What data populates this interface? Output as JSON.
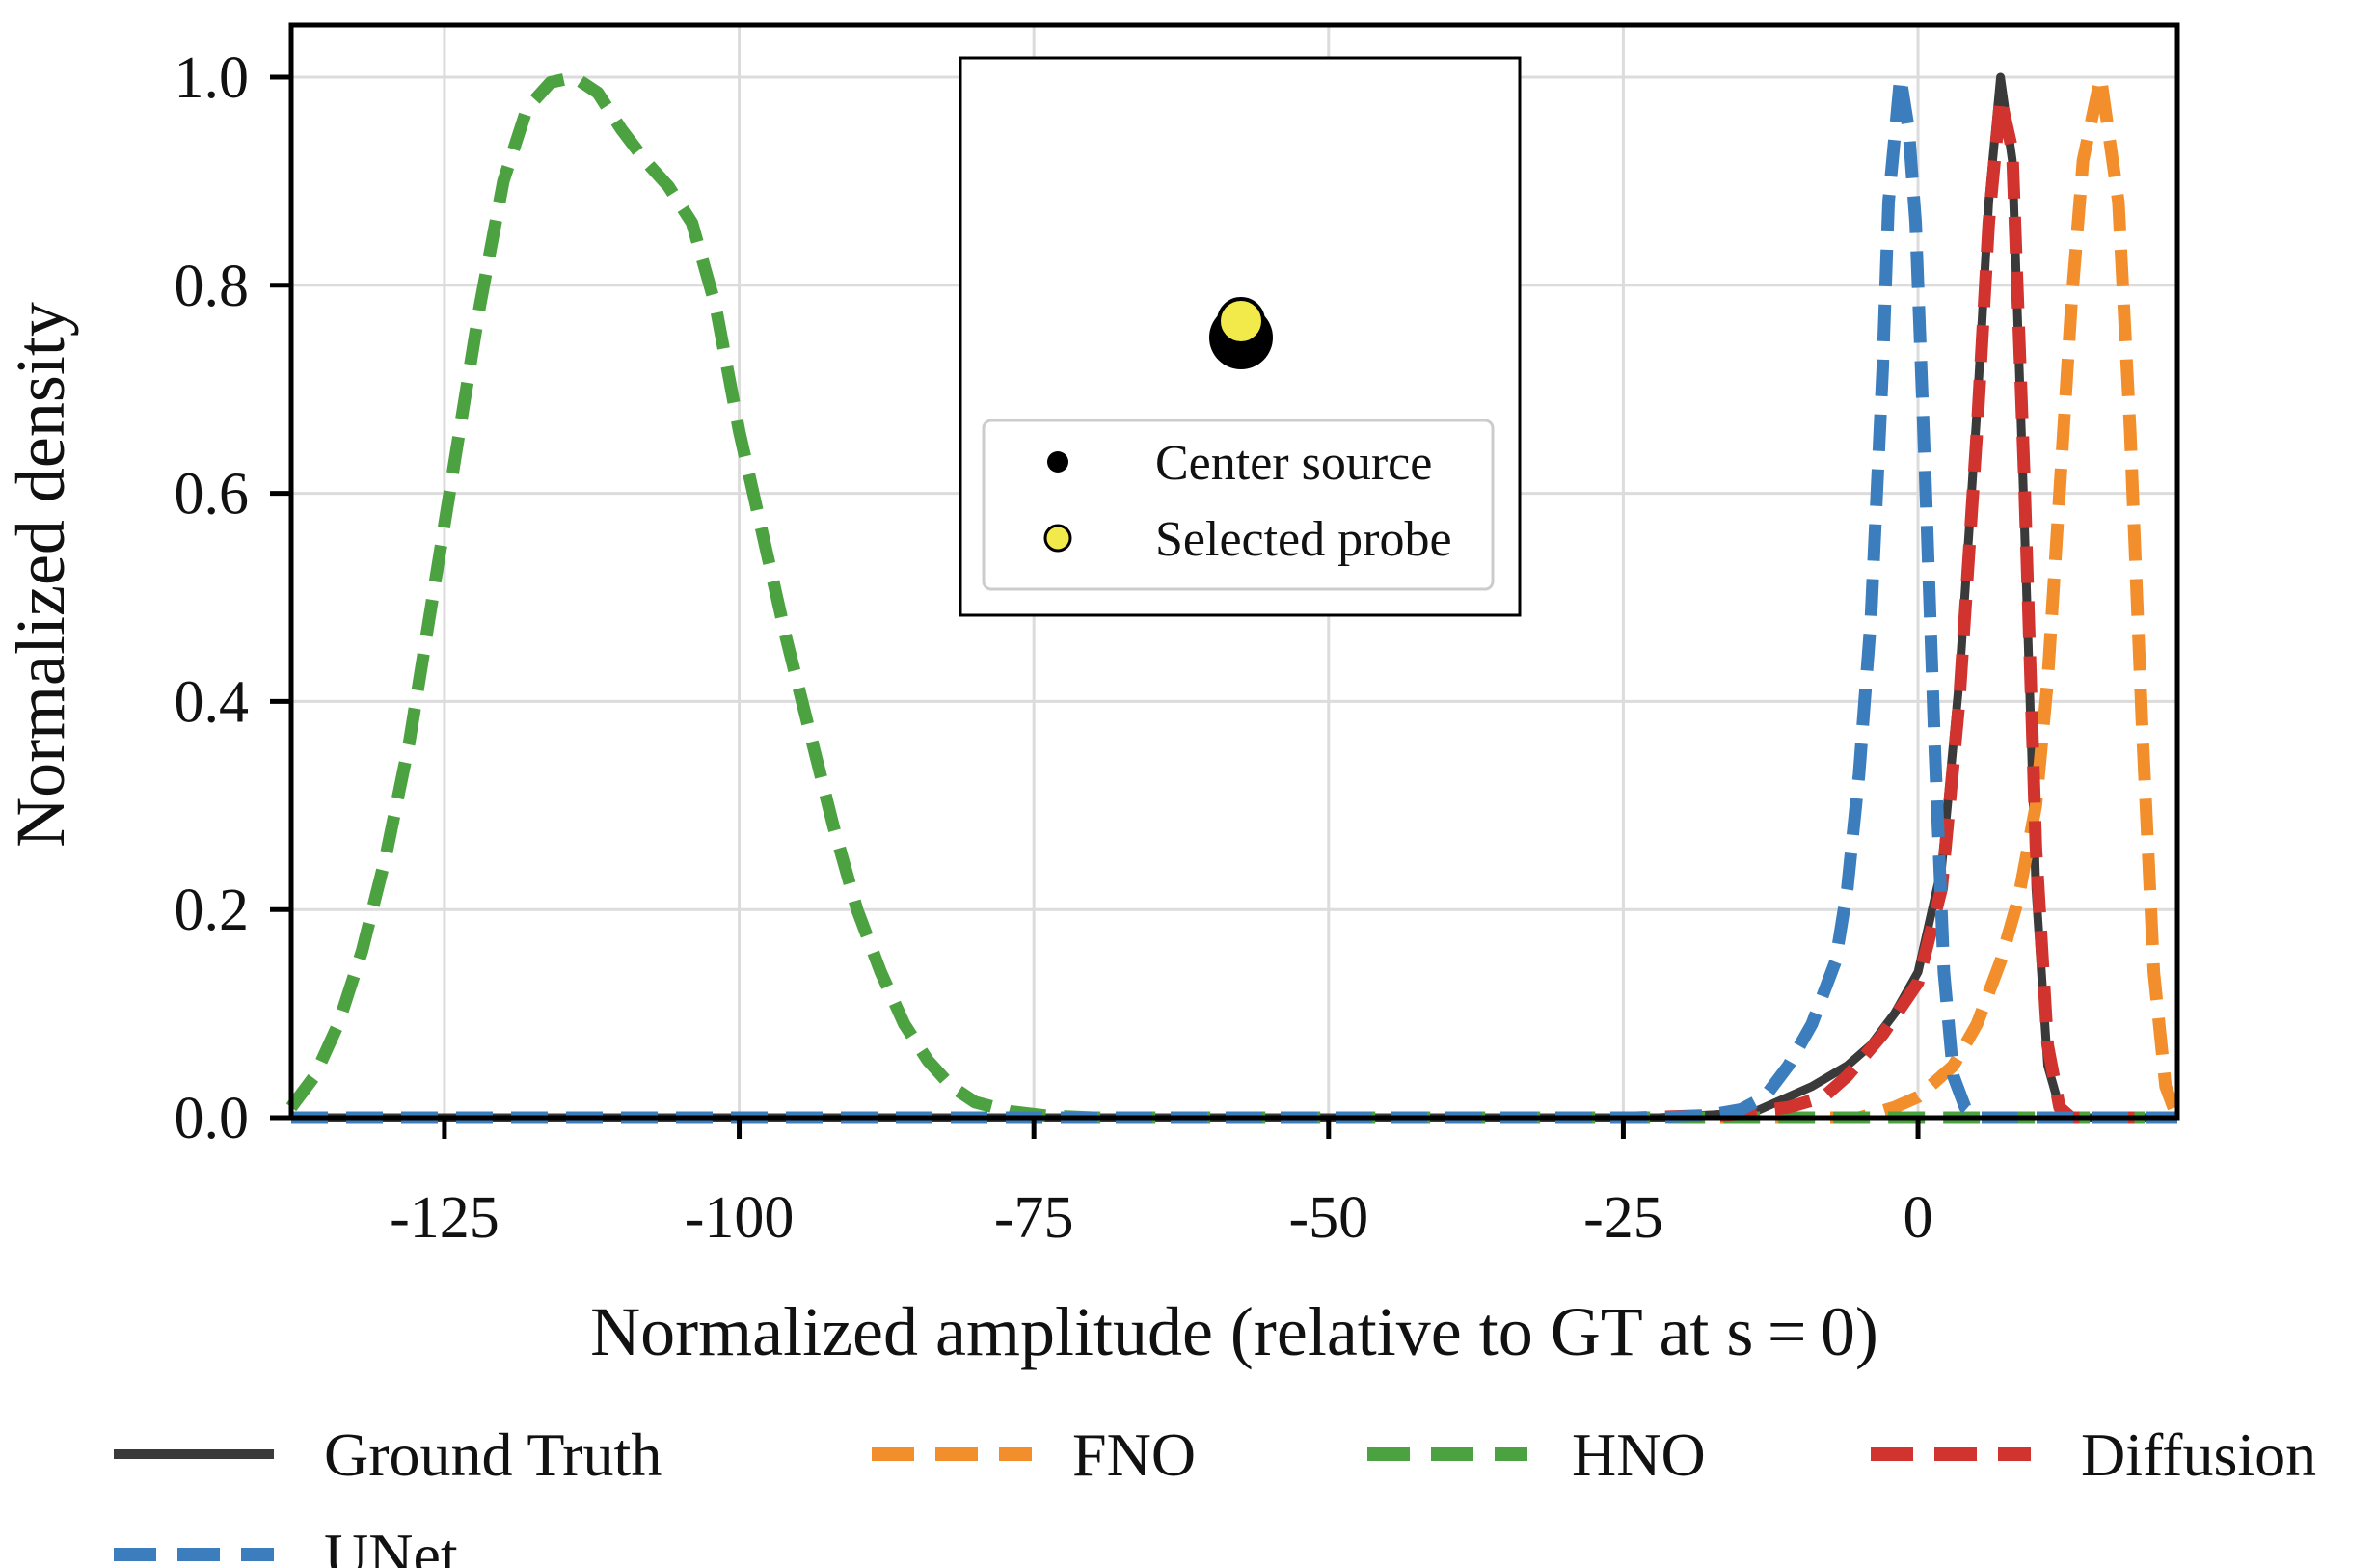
{
  "chart_data": {
    "type": "line",
    "title": "",
    "xlabel": "Normalized amplitude (relative to GT at s = 0)",
    "ylabel": "Normalized density",
    "xlim": [
      -138,
      22
    ],
    "ylim": [
      0,
      1.05
    ],
    "grid": true,
    "x_ticks": [
      -125,
      -100,
      -75,
      -50,
      -25,
      0
    ],
    "x_tick_labels": [
      "-125",
      "-100",
      "-75",
      "-50",
      "-25",
      "0"
    ],
    "y_ticks": [
      0.0,
      0.2,
      0.4,
      0.6,
      0.8,
      1.0
    ],
    "y_tick_labels": [
      "0.0",
      "0.2",
      "0.4",
      "0.6",
      "0.8",
      "1.0"
    ],
    "legend_position": "bottom",
    "series": [
      {
        "name": "Ground Truth",
        "style": "solid",
        "color": "#3a3a3a",
        "points": [
          [
            -138,
            0
          ],
          [
            -22,
            0
          ],
          [
            -14,
            0.005
          ],
          [
            -9,
            0.03
          ],
          [
            -6,
            0.05
          ],
          [
            -4,
            0.07
          ],
          [
            -2,
            0.1
          ],
          [
            0,
            0.14
          ],
          [
            2,
            0.24
          ],
          [
            3.5,
            0.42
          ],
          [
            5,
            0.68
          ],
          [
            6,
            0.88
          ],
          [
            7,
            1.0
          ],
          [
            8,
            0.92
          ],
          [
            9,
            0.58
          ],
          [
            10,
            0.22
          ],
          [
            11,
            0.05
          ],
          [
            12,
            0.01
          ],
          [
            13,
            0
          ],
          [
            22,
            0
          ]
        ]
      },
      {
        "name": "FNO",
        "style": "dashed",
        "color": "#f28e2b",
        "points": [
          [
            -138,
            0
          ],
          [
            -5,
            0
          ],
          [
            -2,
            0.01
          ],
          [
            0,
            0.02
          ],
          [
            3,
            0.05
          ],
          [
            5,
            0.09
          ],
          [
            7,
            0.15
          ],
          [
            8.5,
            0.21
          ],
          [
            10,
            0.3
          ],
          [
            11,
            0.42
          ],
          [
            12,
            0.6
          ],
          [
            13,
            0.78
          ],
          [
            14,
            0.92
          ],
          [
            15.5,
            1.0
          ],
          [
            17,
            0.88
          ],
          [
            18,
            0.66
          ],
          [
            19,
            0.38
          ],
          [
            20,
            0.14
          ],
          [
            21,
            0.03
          ],
          [
            22,
            0
          ]
        ]
      },
      {
        "name": "HNO",
        "style": "dashed",
        "color": "#4ca241",
        "points": [
          [
            -138,
            0.01
          ],
          [
            -136,
            0.04
          ],
          [
            -134,
            0.09
          ],
          [
            -132,
            0.16
          ],
          [
            -130,
            0.25
          ],
          [
            -128,
            0.36
          ],
          [
            -126,
            0.5
          ],
          [
            -124,
            0.64
          ],
          [
            -122,
            0.78
          ],
          [
            -120,
            0.9
          ],
          [
            -118,
            0.97
          ],
          [
            -116,
            0.995
          ],
          [
            -114,
            1.0
          ],
          [
            -112,
            0.985
          ],
          [
            -110,
            0.95
          ],
          [
            -108,
            0.92
          ],
          [
            -106,
            0.895
          ],
          [
            -104,
            0.86
          ],
          [
            -102,
            0.78
          ],
          [
            -100,
            0.66
          ],
          [
            -98,
            0.56
          ],
          [
            -96,
            0.46
          ],
          [
            -94,
            0.37
          ],
          [
            -92,
            0.28
          ],
          [
            -90,
            0.2
          ],
          [
            -88,
            0.14
          ],
          [
            -86,
            0.09
          ],
          [
            -84,
            0.055
          ],
          [
            -82,
            0.03
          ],
          [
            -80,
            0.015
          ],
          [
            -77,
            0.006
          ],
          [
            -74,
            0.002
          ],
          [
            -70,
            0
          ],
          [
            22,
            0
          ]
        ]
      },
      {
        "name": "Diffusion",
        "style": "dashed",
        "color": "#d1342f",
        "points": [
          [
            -138,
            0
          ],
          [
            -24,
            0
          ],
          [
            -16,
            0.003
          ],
          [
            -11,
            0.01
          ],
          [
            -8,
            0.02
          ],
          [
            -6,
            0.04
          ],
          [
            -3,
            0.08
          ],
          [
            0,
            0.13
          ],
          [
            2,
            0.22
          ],
          [
            3.5,
            0.4
          ],
          [
            5,
            0.66
          ],
          [
            6,
            0.86
          ],
          [
            7,
            0.98
          ],
          [
            8,
            0.93
          ],
          [
            9,
            0.62
          ],
          [
            10,
            0.26
          ],
          [
            11,
            0.07
          ],
          [
            12,
            0.01
          ],
          [
            13,
            0
          ],
          [
            22,
            0
          ]
        ]
      },
      {
        "name": "UNet",
        "style": "dashed",
        "color": "#3b7dbd",
        "points": [
          [
            -138,
            0
          ],
          [
            -22,
            0
          ],
          [
            -18,
            0.002
          ],
          [
            -15,
            0.008
          ],
          [
            -13,
            0.02
          ],
          [
            -11,
            0.05
          ],
          [
            -9,
            0.09
          ],
          [
            -7,
            0.15
          ],
          [
            -6,
            0.22
          ],
          [
            -5,
            0.33
          ],
          [
            -4,
            0.48
          ],
          [
            -3.5,
            0.6
          ],
          [
            -3,
            0.72
          ],
          [
            -2.5,
            0.88
          ],
          [
            -1.5,
            1.0
          ],
          [
            -0.8,
            0.95
          ],
          [
            -0.2,
            0.86
          ],
          [
            0.6,
            0.62
          ],
          [
            1.4,
            0.36
          ],
          [
            2.2,
            0.14
          ],
          [
            3,
            0.04
          ],
          [
            4,
            0.01
          ],
          [
            5,
            0
          ],
          [
            22,
            0
          ]
        ]
      }
    ]
  },
  "inset": {
    "legend_items": [
      {
        "name": "Center source",
        "color": "#000000"
      },
      {
        "name": "Selected probe",
        "color": "#f2ea4a"
      }
    ]
  }
}
